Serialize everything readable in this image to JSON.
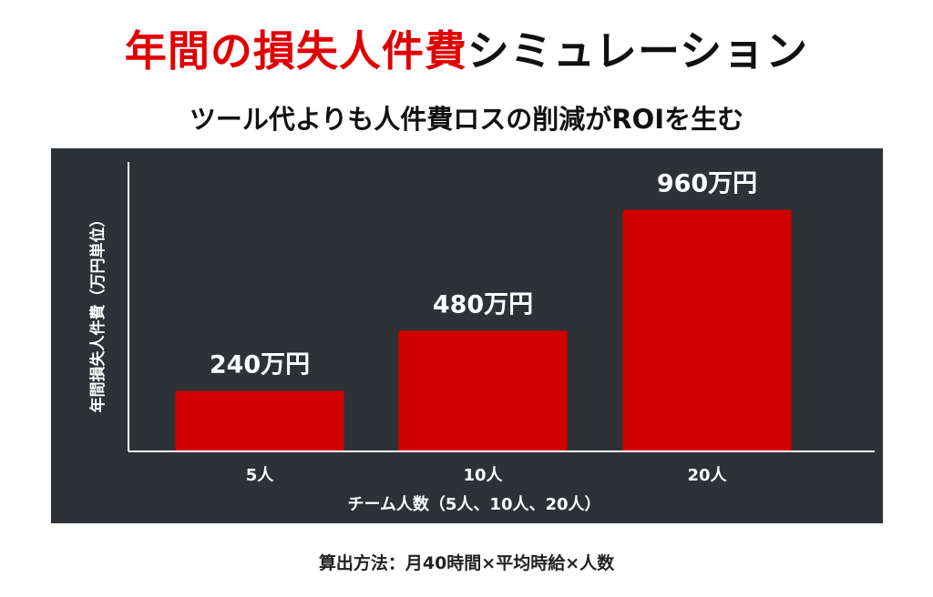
{
  "title": {
    "red_part": "年間の損失人件費",
    "dark_part": "シミュレーション"
  },
  "subtitle": "ツール代よりも人件費ロスの削減がROIを生む",
  "colors": {
    "accent": "#e00000",
    "bar": "#d10000",
    "panel_bg": "#2e3236",
    "axis": "#ffffff"
  },
  "chart_data": {
    "type": "bar",
    "categories": [
      "5人",
      "10人",
      "20人"
    ],
    "values": [
      240,
      480,
      960
    ],
    "value_labels": [
      "240万円",
      "480万円",
      "960万円"
    ],
    "xlabel": "チーム人数（5人、10人、20人）",
    "ylabel": "年間損失人件費（万円単位）",
    "ylim": [
      0,
      1150
    ],
    "grid": false,
    "legend": "none"
  },
  "footnote": "算出方法：月40時間×平均時給×人数"
}
